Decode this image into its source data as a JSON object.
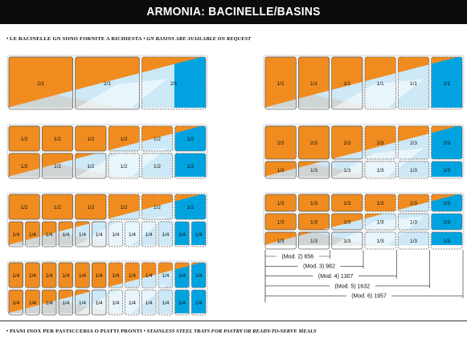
{
  "title": "ARMONIA: BACINELLE/BASINS",
  "note_top": {
    "bullet": "•",
    "it_text": "LE BACINELLE GN SONO FORNITE A RICHIESTA",
    "separator": "•",
    "en_text": "GN BASINS ARE AVAILABLE ON REQUEST"
  },
  "note_bottom": {
    "bullet": "•",
    "it_text": "PIANI INOX PER PASTICCERIA O PIATTI PRONTI",
    "separator": "•",
    "en_text": "STAINLESS STEEL TRAYS FOR PASTRY OR READY-TO-SERVE MEALS"
  },
  "colors": {
    "orange": "#f08c1f",
    "light_blue": "#cde8f6",
    "blue": "#00a3e0",
    "grey": "#cfd1d2",
    "white": "#ffffff",
    "outline": "#5a5a5a"
  },
  "configurations": [
    {
      "id": "left-2-1",
      "rows": [
        {
          "count": 3,
          "label": "2/1"
        }
      ]
    },
    {
      "id": "left-1-2",
      "rows": [
        {
          "count": 6,
          "label": "1/2"
        },
        {
          "count": 6,
          "label": "1/2"
        }
      ]
    },
    {
      "id": "left-1-2-1-4",
      "rows": [
        {
          "count": 6,
          "label": "1/2"
        },
        {
          "count": 12,
          "label": "1/4"
        }
      ]
    },
    {
      "id": "left-1-4",
      "rows": [
        {
          "count": 12,
          "label": "1/4"
        },
        {
          "count": 12,
          "label": "1/4"
        }
      ]
    },
    {
      "id": "right-1-1",
      "rows": [
        {
          "count": 6,
          "label": "1/1"
        }
      ]
    },
    {
      "id": "right-2-3-1-3",
      "rows": [
        {
          "count": 6,
          "label": "2/3"
        },
        {
          "count": 6,
          "label": "1/3"
        }
      ]
    },
    {
      "id": "right-1-3",
      "rows": [
        {
          "count": 6,
          "label": "1/3"
        },
        {
          "count": 6,
          "label": "1/3"
        },
        {
          "count": 6,
          "label": "1/3"
        }
      ]
    }
  ],
  "modules": [
    {
      "label": "(Mod. 2) 656",
      "span": 2
    },
    {
      "label": "(Mod. 3) 982",
      "span": 3
    },
    {
      "label": "(Mod. 4) 1307",
      "span": 4
    },
    {
      "label": "(Mod. 5) 1632",
      "span": 5
    },
    {
      "label": "(Mod. 6) 1957",
      "span": 6
    }
  ]
}
